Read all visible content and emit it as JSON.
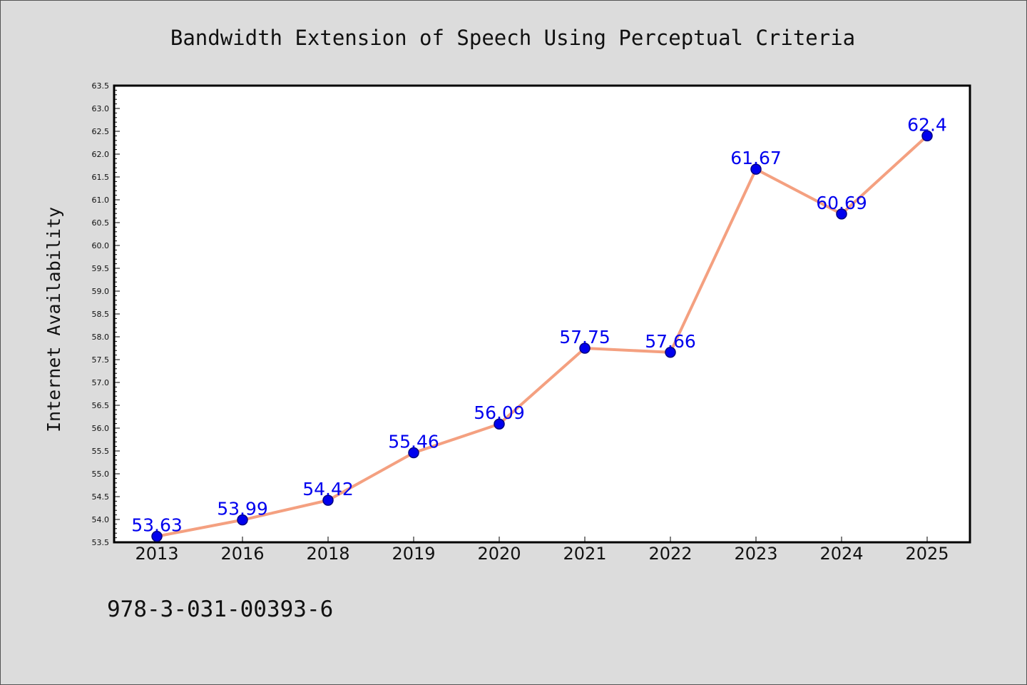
{
  "footer_text": "978-3-031-00393-6",
  "colors": {
    "background": "#dcdcdc",
    "plot_background": "#ffffff",
    "line": "#f4a080",
    "marker": "#0000ee",
    "marker_edge": "#000080",
    "data_label": "#0000ee"
  },
  "chart_data": {
    "type": "line",
    "title": "Bandwidth Extension of Speech Using Perceptual Criteria",
    "xlabel": "",
    "ylabel": "Internet Availability",
    "categories": [
      "2013",
      "2016",
      "2018",
      "2019",
      "2020",
      "2021",
      "2022",
      "2023",
      "2024",
      "2025"
    ],
    "series": [
      {
        "values": [
          53.63,
          53.99,
          54.42,
          55.46,
          56.09,
          57.75,
          57.66,
          61.67,
          60.69,
          62.4
        ],
        "labels": [
          "53.63",
          "53.99",
          "54.42",
          "55.46",
          "56.09",
          "57.75",
          "57.66",
          "61.67",
          "60.69",
          "62.4"
        ]
      }
    ],
    "ylim": [
      53.5,
      63.5
    ],
    "y_major_step": 0.5,
    "y_minor_step": 0.1,
    "grid": false,
    "legend": "none",
    "marker": "circle"
  }
}
